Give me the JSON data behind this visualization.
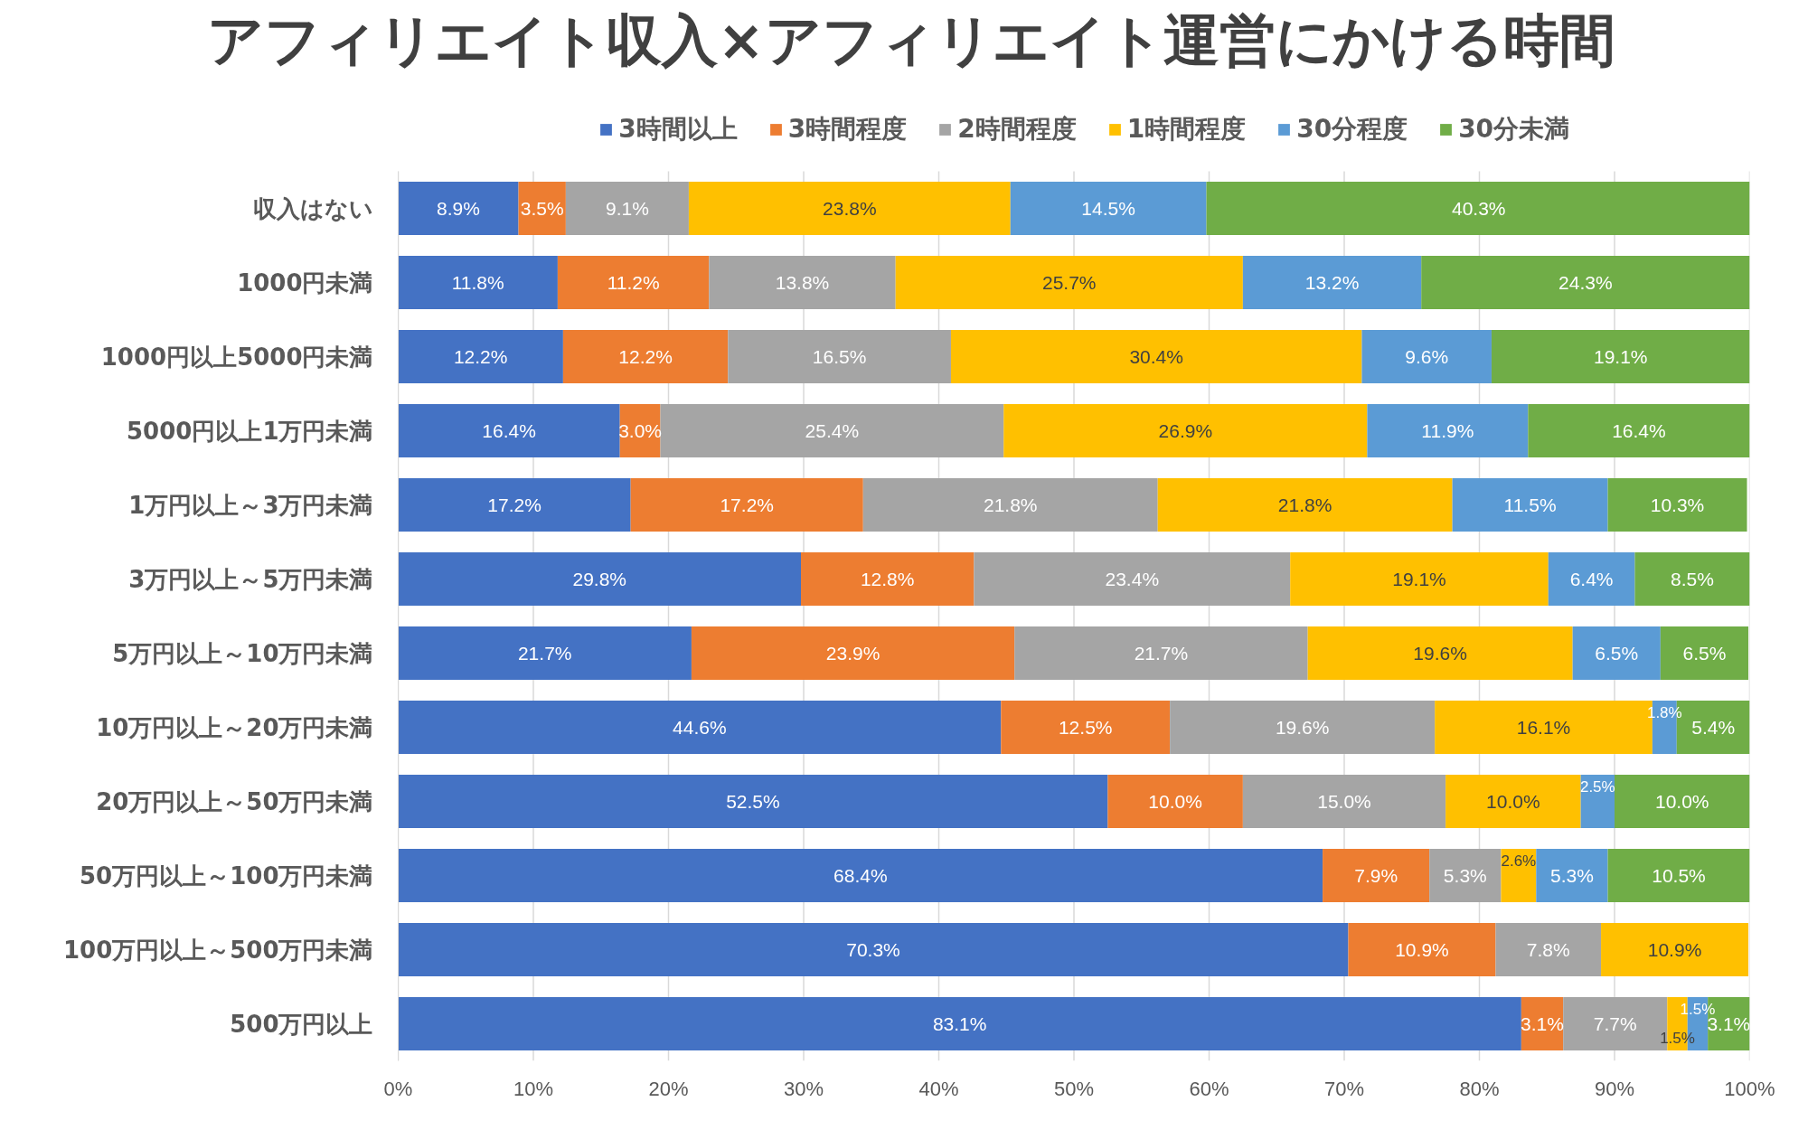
{
  "chart_data": {
    "type": "bar",
    "orientation": "horizontal",
    "stacked": true,
    "title": "アフィリエイト収入×アフィリエイト運営にかける時間",
    "categories": [
      "収入はない",
      "1000円未満",
      "1000円以上5000円未満",
      "5000円以上1万円未満",
      "1万円以上～3万円未満",
      "3万円以上～5万円未満",
      "5万円以上～10万円未満",
      "10万円以上～20万円未満",
      "20万円以上～50万円未満",
      "50万円以上～100万円未満",
      "100万円以上～500万円未満",
      "500万円以上"
    ],
    "series": [
      {
        "name": "3時間以上",
        "color": "#4472c4",
        "values": [
          8.9,
          11.8,
          12.2,
          16.4,
          17.2,
          29.8,
          21.7,
          44.6,
          52.5,
          68.4,
          70.3,
          83.1
        ],
        "value_labels": [
          "8.9%",
          "11.8%",
          "12.2%",
          "16.4%",
          "17.2%",
          "29.8%",
          "21.7%",
          "44.6%",
          "52.5%",
          "68.4%",
          "70.3%",
          "83.1%"
        ]
      },
      {
        "name": "3時間程度",
        "color": "#ed7d31",
        "values": [
          3.5,
          11.2,
          12.2,
          3.0,
          17.2,
          12.8,
          23.9,
          12.5,
          10.0,
          7.9,
          10.9,
          3.1
        ],
        "value_labels": [
          "3.5%",
          "11.2%",
          "12.2%",
          "3.0%",
          "17.2%",
          "12.8%",
          "23.9%",
          "12.5%",
          "10.0%",
          "7.9%",
          "10.9%",
          "3.1%"
        ]
      },
      {
        "name": "2時間程度",
        "color": "#a5a5a5",
        "values": [
          9.1,
          13.8,
          16.5,
          25.4,
          21.8,
          23.4,
          21.7,
          19.6,
          15.0,
          5.3,
          7.8,
          7.7
        ],
        "value_labels": [
          "9.1%",
          "13.8%",
          "16.5%",
          "25.4%",
          "21.8%",
          "23.4%",
          "21.7%",
          "19.6%",
          "15.0%",
          "5.3%",
          "7.8%",
          "7.7%"
        ]
      },
      {
        "name": "1時間程度",
        "color": "#ffc000",
        "values": [
          23.8,
          25.7,
          30.4,
          26.9,
          21.8,
          19.1,
          19.6,
          16.1,
          10.0,
          2.6,
          10.9,
          1.5
        ],
        "value_labels": [
          "23.8%",
          "25.7%",
          "30.4%",
          "26.9%",
          "21.8%",
          "19.1%",
          "19.6%",
          "16.1%",
          "10.0%",
          "2.6%",
          "10.9%",
          "1.5%"
        ]
      },
      {
        "name": "30分程度",
        "color": "#5b9bd5",
        "values": [
          14.5,
          13.2,
          9.6,
          11.9,
          11.5,
          6.4,
          6.5,
          1.8,
          2.5,
          5.3,
          null,
          1.5
        ],
        "value_labels": [
          "14.5%",
          "13.2%",
          "9.6%",
          "11.9%",
          "11.5%",
          "6.4%",
          "6.5%",
          "1.8%",
          "2.5%",
          "5.3%",
          null,
          "1.5%"
        ]
      },
      {
        "name": "30分未満",
        "color": "#70ad47",
        "values": [
          40.3,
          24.3,
          19.1,
          16.4,
          10.3,
          8.5,
          6.5,
          5.4,
          10.0,
          10.5,
          null,
          3.1
        ],
        "value_labels": [
          "40.3%",
          "24.3%",
          "19.1%",
          "16.4%",
          "10.3%",
          "8.5%",
          "6.5%",
          "5.4%",
          "10.0%",
          "10.5%",
          null,
          "3.1%"
        ]
      }
    ],
    "xlim": [
      0,
      100
    ],
    "xticks": [
      {
        "value": 0,
        "label": "0%"
      },
      {
        "value": 10,
        "label": "10%"
      },
      {
        "value": 20,
        "label": "20%"
      },
      {
        "value": 30,
        "label": "30%"
      },
      {
        "value": 40,
        "label": "40%"
      },
      {
        "value": 50,
        "label": "50%"
      },
      {
        "value": 60,
        "label": "60%"
      },
      {
        "value": 70,
        "label": "70%"
      },
      {
        "value": 80,
        "label": "80%"
      },
      {
        "value": 90,
        "label": "90%"
      },
      {
        "value": 100,
        "label": "100%"
      }
    ],
    "grid": "x",
    "legend": "top"
  }
}
